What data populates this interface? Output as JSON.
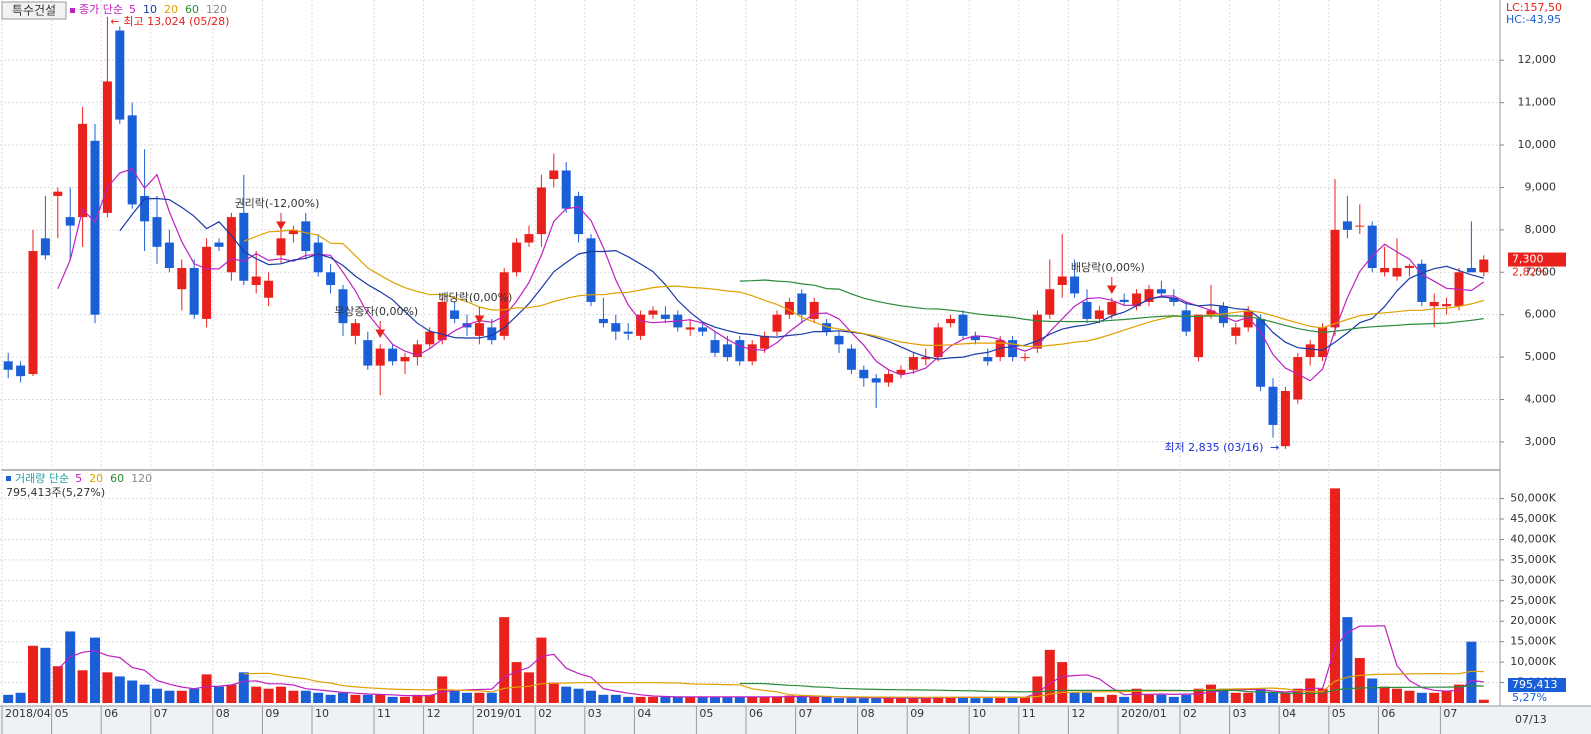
{
  "chart_data": {
    "type": "candlestick",
    "title": "특수건설",
    "price_legend": "종가 단순",
    "volume_legend": "거래량 단순",
    "ma": [
      {
        "period": 5,
        "color": "#c020c0"
      },
      {
        "period": 10,
        "color": "#1a3aa8"
      },
      {
        "period": 20,
        "color": "#e0a000"
      },
      {
        "period": 60,
        "color": "#2a8a3a"
      },
      {
        "period": 120,
        "color": "#8a8a8a"
      }
    ],
    "volume_ma": [
      {
        "period": 5,
        "color": "#c020c0"
      },
      {
        "period": 20,
        "color": "#e0a000"
      },
      {
        "period": 60,
        "color": "#2a8a3a"
      },
      {
        "period": 120,
        "color": "#8a8a8a"
      }
    ],
    "up_color": "#e8211c",
    "down_color": "#1b5fd6",
    "candles": [
      [
        4900,
        5100,
        4500,
        4700
      ],
      [
        4800,
        4900,
        4400,
        4550
      ],
      [
        4600,
        8000,
        4550,
        7500
      ],
      [
        7800,
        8800,
        7300,
        7400
      ],
      [
        8800,
        9000,
        7800,
        8900
      ],
      [
        8300,
        9000,
        7300,
        8100
      ],
      [
        8300,
        10900,
        7600,
        10500
      ],
      [
        10100,
        10500,
        5800,
        6000
      ],
      [
        8400,
        13024,
        8300,
        11500
      ],
      [
        12700,
        12800,
        10500,
        10600
      ],
      [
        10700,
        11000,
        8500,
        8600
      ],
      [
        8800,
        9900,
        7500,
        8200
      ],
      [
        8300,
        8800,
        7200,
        7600
      ],
      [
        7700,
        8000,
        7000,
        7100
      ],
      [
        6600,
        7300,
        6100,
        7100
      ],
      [
        7100,
        7300,
        5900,
        6000
      ],
      [
        5900,
        7800,
        5700,
        7600
      ],
      [
        7700,
        7800,
        7500,
        7600
      ],
      [
        7000,
        8400,
        6800,
        8300
      ],
      [
        8400,
        9300,
        6700,
        6800
      ],
      [
        6700,
        7500,
        6500,
        6900
      ],
      [
        6400,
        7000,
        6200,
        6800
      ],
      [
        7400,
        8200,
        7200,
        7800
      ],
      [
        7900,
        8100,
        7700,
        8000
      ],
      [
        8200,
        8400,
        7300,
        7500
      ],
      [
        7700,
        7900,
        6900,
        7000
      ],
      [
        7000,
        7200,
        6500,
        6700
      ],
      [
        6600,
        6700,
        5500,
        5800
      ],
      [
        5500,
        5900,
        5300,
        5800
      ],
      [
        5400,
        5600,
        4700,
        4800
      ],
      [
        4800,
        5300,
        4100,
        5200
      ],
      [
        5200,
        5300,
        4800,
        4900
      ],
      [
        4900,
        5100,
        4600,
        5000
      ],
      [
        5000,
        5400,
        4800,
        5300
      ],
      [
        5300,
        5700,
        5200,
        5600
      ],
      [
        5400,
        6400,
        5300,
        6300
      ],
      [
        6100,
        6300,
        5800,
        5900
      ],
      [
        5800,
        6000,
        5500,
        5700
      ],
      [
        5500,
        5900,
        5300,
        5800
      ],
      [
        5700,
        5900,
        5300,
        5400
      ],
      [
        5500,
        7100,
        5400,
        7000
      ],
      [
        7000,
        7800,
        6900,
        7700
      ],
      [
        7700,
        8100,
        7600,
        7900
      ],
      [
        7900,
        9300,
        7600,
        9000
      ],
      [
        9200,
        9800,
        9000,
        9400
      ],
      [
        9400,
        9600,
        8400,
        8500
      ],
      [
        8800,
        8900,
        7700,
        7900
      ],
      [
        7800,
        7900,
        6200,
        6300
      ],
      [
        5900,
        6400,
        5700,
        5800
      ],
      [
        5800,
        6000,
        5400,
        5600
      ],
      [
        5600,
        5800,
        5400,
        5550
      ],
      [
        5500,
        6100,
        5400,
        6000
      ],
      [
        6000,
        6200,
        5900,
        6100
      ],
      [
        6000,
        6200,
        5800,
        5900
      ],
      [
        6000,
        6100,
        5600,
        5700
      ],
      [
        5650,
        5900,
        5500,
        5700
      ],
      [
        5700,
        5800,
        5500,
        5600
      ],
      [
        5400,
        5600,
        5000,
        5100
      ],
      [
        5300,
        5500,
        4900,
        5000
      ],
      [
        5400,
        5500,
        4800,
        4900
      ],
      [
        4900,
        5400,
        4800,
        5300
      ],
      [
        5200,
        5600,
        5100,
        5500
      ],
      [
        5600,
        6100,
        5500,
        6000
      ],
      [
        6000,
        6400,
        5900,
        6300
      ],
      [
        6500,
        6600,
        5800,
        6000
      ],
      [
        5900,
        6400,
        5800,
        6300
      ],
      [
        5800,
        5900,
        5500,
        5600
      ],
      [
        5500,
        5600,
        5100,
        5300
      ],
      [
        5200,
        5300,
        4600,
        4700
      ],
      [
        4700,
        4800,
        4300,
        4500
      ],
      [
        4500,
        4600,
        3800,
        4400
      ],
      [
        4400,
        4700,
        4300,
        4600
      ],
      [
        4600,
        4800,
        4500,
        4700
      ],
      [
        4700,
        5100,
        4600,
        5000
      ],
      [
        4950,
        5200,
        4800,
        5000
      ],
      [
        5000,
        5800,
        4900,
        5700
      ],
      [
        5800,
        6000,
        5700,
        5900
      ],
      [
        6000,
        6100,
        5400,
        5500
      ],
      [
        5500,
        5600,
        5300,
        5400
      ],
      [
        5000,
        5200,
        4800,
        4900
      ],
      [
        5000,
        5500,
        4900,
        5400
      ],
      [
        5400,
        5500,
        4900,
        5000
      ],
      [
        5000,
        5100,
        4900,
        5000
      ],
      [
        5200,
        6100,
        5100,
        6000
      ],
      [
        6000,
        7300,
        5900,
        6600
      ],
      [
        6700,
        7900,
        6400,
        6900
      ],
      [
        6900,
        7300,
        6400,
        6500
      ],
      [
        6300,
        6600,
        5800,
        5900
      ],
      [
        5900,
        6200,
        5800,
        6100
      ],
      [
        6000,
        6400,
        5900,
        6300
      ],
      [
        6350,
        6500,
        6200,
        6300
      ],
      [
        6200,
        6600,
        6100,
        6500
      ],
      [
        6300,
        6700,
        6200,
        6600
      ],
      [
        6600,
        6800,
        6400,
        6500
      ],
      [
        6400,
        6600,
        6200,
        6300
      ],
      [
        6100,
        6300,
        5500,
        5600
      ],
      [
        5000,
        6000,
        4900,
        6000
      ],
      [
        6000,
        6700,
        5900,
        6100
      ],
      [
        6200,
        6300,
        5700,
        5800
      ],
      [
        5500,
        5800,
        5300,
        5700
      ],
      [
        5700,
        6200,
        5600,
        6100
      ],
      [
        5900,
        6000,
        4200,
        4300
      ],
      [
        4300,
        4500,
        3100,
        3400
      ],
      [
        2900,
        4300,
        2835,
        4200
      ],
      [
        4000,
        5100,
        3900,
        5000
      ],
      [
        5000,
        5400,
        4800,
        5300
      ],
      [
        5000,
        5800,
        4900,
        5700
      ],
      [
        5700,
        9200,
        5500,
        8000
      ],
      [
        8200,
        8800,
        7800,
        8000
      ],
      [
        8100,
        8600,
        7900,
        8100
      ],
      [
        8100,
        8200,
        7000,
        7100
      ],
      [
        7000,
        7600,
        6900,
        7100
      ],
      [
        6900,
        7800,
        6800,
        7100
      ],
      [
        7100,
        7200,
        6900,
        7150
      ],
      [
        7200,
        7300,
        6200,
        6300
      ],
      [
        6200,
        6500,
        5700,
        6300
      ],
      [
        6200,
        6400,
        6000,
        6250
      ],
      [
        6200,
        7100,
        6100,
        7000
      ],
      [
        7100,
        8200,
        7000,
        7000
      ],
      [
        7000,
        7400,
        6900,
        7300
      ]
    ],
    "volume": [
      2000,
      2500,
      14000,
      13500,
      9000,
      17500,
      8000,
      16000,
      7500,
      6500,
      5500,
      4500,
      3500,
      3000,
      3000,
      3500,
      7000,
      4000,
      4500,
      7500,
      4000,
      3500,
      4000,
      3000,
      3000,
      2500,
      2000,
      2500,
      2000,
      2000,
      2000,
      1500,
      1500,
      2000,
      2000,
      6500,
      3000,
      2500,
      2500,
      2500,
      21000,
      10000,
      7500,
      16000,
      5000,
      4000,
      3500,
      3000,
      2000,
      2000,
      1500,
      1500,
      1500,
      1500,
      1500,
      1500,
      1500,
      1500,
      1500,
      1500,
      1500,
      1500,
      1500,
      1800,
      1500,
      1500,
      1500,
      1200,
      1200,
      1200,
      1200,
      1200,
      1200,
      1200,
      1200,
      1500,
      1500,
      1500,
      1200,
      1200,
      1500,
      1500,
      1500,
      6500,
      13000,
      10000,
      2500,
      2500,
      1500,
      2000,
      1500,
      3500,
      2000,
      2000,
      1500,
      2000,
      3500,
      4500,
      3500,
      2500,
      2500,
      3500,
      2500,
      2500,
      3500,
      6000,
      3500,
      52500,
      21000,
      11000,
      6000,
      4000,
      3500,
      3000,
      2500,
      2500,
      3000,
      4500,
      15000,
      795.413
    ],
    "ylim": [
      2408,
      13420
    ],
    "yticks": [
      {
        "value": 3000,
        "label": "3,000"
      },
      {
        "value": 4000,
        "label": "4,000"
      },
      {
        "value": 5000,
        "label": "5,000"
      },
      {
        "value": 6000,
        "label": "6,000"
      },
      {
        "value": 7000,
        "label": "7,000"
      },
      {
        "value": 8000,
        "label": "8,000"
      },
      {
        "value": 9000,
        "label": "9,000"
      },
      {
        "value": 10000,
        "label": "10,000"
      },
      {
        "value": 11000,
        "label": "11,000"
      },
      {
        "value": 12000,
        "label": "12,000"
      }
    ],
    "volume_ylim": [
      0,
      56500
    ],
    "volume_yticks": [
      {
        "value": 5000,
        "label": "5,000K"
      },
      {
        "value": 10000,
        "label": "10,000K"
      },
      {
        "value": 15000,
        "label": "15,000K"
      },
      {
        "value": 20000,
        "label": "20,000K"
      },
      {
        "value": 25000,
        "label": "25,000K"
      },
      {
        "value": 30000,
        "label": "30,000K"
      },
      {
        "value": 35000,
        "label": "35,000K"
      },
      {
        "value": 40000,
        "label": "40,000K"
      },
      {
        "value": 45000,
        "label": "45,000K"
      },
      {
        "value": 50000,
        "label": "50,000K"
      }
    ],
    "xticks": [
      {
        "value": 0,
        "label": "2018/04"
      },
      {
        "value": 4,
        "label": "05"
      },
      {
        "value": 8,
        "label": "06"
      },
      {
        "value": 12,
        "label": "07"
      },
      {
        "value": 17,
        "label": "08"
      },
      {
        "value": 21,
        "label": "09"
      },
      {
        "value": 25,
        "label": "10"
      },
      {
        "value": 30,
        "label": "11"
      },
      {
        "value": 34,
        "label": "12"
      },
      {
        "value": 38,
        "label": "2019/01"
      },
      {
        "value": 43,
        "label": "02"
      },
      {
        "value": 47,
        "label": "03"
      },
      {
        "value": 51,
        "label": "04"
      },
      {
        "value": 56,
        "label": "05"
      },
      {
        "value": 60,
        "label": "06"
      },
      {
        "value": 64,
        "label": "07"
      },
      {
        "value": 69,
        "label": "08"
      },
      {
        "value": 73,
        "label": "09"
      },
      {
        "value": 78,
        "label": "10"
      },
      {
        "value": 82,
        "label": "11"
      },
      {
        "value": 86,
        "label": "12"
      },
      {
        "value": 90,
        "label": "2020/01"
      },
      {
        "value": 95,
        "label": "02"
      },
      {
        "value": 99,
        "label": "03"
      },
      {
        "value": 103,
        "label": "04"
      },
      {
        "value": 107,
        "label": "05"
      },
      {
        "value": 111,
        "label": "06"
      },
      {
        "value": 116,
        "label": "07"
      }
    ],
    "grid": true,
    "high_label": "최고 13,024 (05/28)",
    "low_label": "최저 2,835 (03/16)",
    "events": [
      "권리락(-12,00%)",
      "무상증자(0,00%)",
      "배당락(0,00%)",
      "배당락(0,00%)"
    ],
    "lc_label": "LC:157,50",
    "hc_label": "HC:-43,95",
    "last_price": "7,300",
    "last_change": "2,82%",
    "volume_info": "795,413주(5,27%)",
    "last_volume": "795,413",
    "last_volume_ratio": "5,27%",
    "last_date": "07/13"
  }
}
